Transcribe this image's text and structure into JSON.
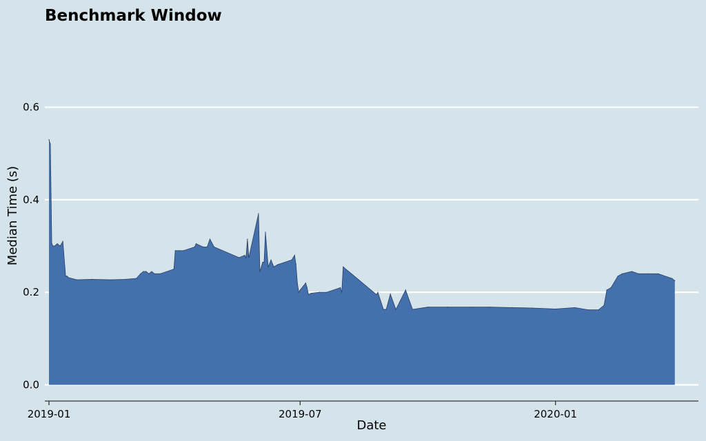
{
  "chart_data": {
    "type": "area",
    "title": "Benchmark Window",
    "xlabel": "Date",
    "ylabel": "Median Time (s)",
    "xlim": [
      "2018-12-29",
      "2020-04-13"
    ],
    "ylim": [
      -0.035,
      0.72
    ],
    "x_ticks": [
      "2019-01",
      "2019-07",
      "2020-01"
    ],
    "y_ticks": [
      0.0,
      0.2,
      0.4,
      0.6
    ],
    "y_tick_labels": [
      "0.0",
      "0.2",
      "0.4",
      "0.6"
    ],
    "grid": "horizontal",
    "colors": {
      "background": "#d5e4eb",
      "fill": "#4470ad",
      "line": "#2a3f5f",
      "grid": "#ffffff",
      "axis": "#333333"
    },
    "series": [
      {
        "x": [
          "2019-01-01",
          "2019-01-02",
          "2019-01-03",
          "2019-01-04",
          "2019-01-05",
          "2019-01-07",
          "2019-01-09",
          "2019-01-11",
          "2019-01-13",
          "2019-01-14",
          "2019-01-15",
          "2019-01-21",
          "2019-02-01",
          "2019-02-15",
          "2019-02-25",
          "2019-03-05",
          "2019-03-08",
          "2019-03-10",
          "2019-03-12",
          "2019-03-14",
          "2019-03-16",
          "2019-03-18",
          "2019-03-22",
          "2019-04-01",
          "2019-04-02",
          "2019-04-05",
          "2019-04-08",
          "2019-04-16",
          "2019-04-17",
          "2019-04-22",
          "2019-04-25",
          "2019-04-27",
          "2019-04-30",
          "2019-05-18",
          "2019-05-22",
          "2019-05-23",
          "2019-05-24",
          "2019-05-25",
          "2019-06-01",
          "2019-06-02",
          "2019-06-04",
          "2019-06-05",
          "2019-06-06",
          "2019-06-08",
          "2019-06-10",
          "2019-06-12",
          "2019-06-15",
          "2019-06-20",
          "2019-06-25",
          "2019-06-26",
          "2019-06-27",
          "2019-06-28",
          "2019-06-29",
          "2019-06-30",
          "2019-07-01",
          "2019-07-05",
          "2019-07-06",
          "2019-07-07",
          "2019-07-09",
          "2019-07-15",
          "2019-07-20",
          "2019-07-30",
          "2019-07-31",
          "2019-08-01",
          "2019-08-25",
          "2019-08-26",
          "2019-08-30",
          "2019-08-31",
          "2019-09-01",
          "2019-09-04",
          "2019-09-08",
          "2019-09-15",
          "2019-09-20",
          "2019-10-01",
          "2019-10-15",
          "2019-11-01",
          "2019-11-15",
          "2019-12-01",
          "2019-12-15",
          "2020-01-01",
          "2020-01-15",
          "2020-01-25",
          "2020-02-01",
          "2020-02-05",
          "2020-02-07",
          "2020-02-10",
          "2020-02-15",
          "2020-02-18",
          "2020-02-25",
          "2020-03-01",
          "2020-03-08",
          "2020-03-15",
          "2020-03-25",
          "2020-03-27"
        ],
        "y": [
          0.53,
          0.52,
          0.305,
          0.3,
          0.3,
          0.305,
          0.3,
          0.31,
          0.235,
          0.235,
          0.232,
          0.227,
          0.228,
          0.227,
          0.228,
          0.23,
          0.24,
          0.245,
          0.245,
          0.24,
          0.245,
          0.24,
          0.24,
          0.25,
          0.29,
          0.29,
          0.29,
          0.298,
          0.305,
          0.298,
          0.298,
          0.315,
          0.298,
          0.275,
          0.28,
          0.275,
          0.315,
          0.275,
          0.37,
          0.245,
          0.265,
          0.265,
          0.33,
          0.255,
          0.27,
          0.255,
          0.26,
          0.265,
          0.27,
          0.275,
          0.28,
          0.26,
          0.22,
          0.2,
          0.205,
          0.22,
          0.21,
          0.195,
          0.198,
          0.2,
          0.2,
          0.21,
          0.2,
          0.255,
          0.195,
          0.2,
          0.163,
          0.163,
          0.163,
          0.196,
          0.163,
          0.205,
          0.163,
          0.168,
          0.168,
          0.168,
          0.168,
          0.167,
          0.166,
          0.164,
          0.167,
          0.162,
          0.162,
          0.172,
          0.205,
          0.21,
          0.235,
          0.24,
          0.245,
          0.24,
          0.24,
          0.24,
          0.23,
          0.225
        ]
      }
    ]
  }
}
